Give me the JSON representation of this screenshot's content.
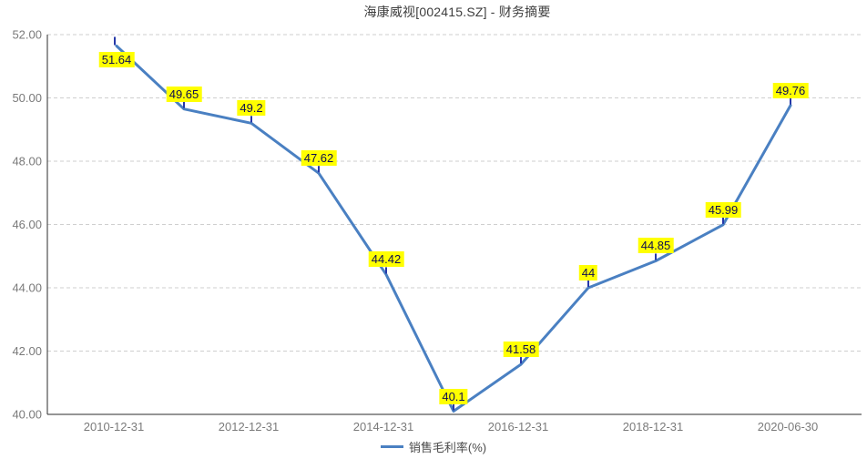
{
  "title": "海康威视[002415.SZ] - 财务摘要",
  "legend": {
    "series_label": "销售毛利率(%)"
  },
  "colors": {
    "series_line": "#4a80c2",
    "connector": "#2638a8",
    "point_label_bg": "#ffff00",
    "point_label_text": "#0d0d52",
    "grid_line": "#cfcfcf",
    "axis_line": "#2b2b2b",
    "axis_text": "#7a7a7a"
  },
  "chart_data": {
    "type": "line",
    "title": "海康威视[002415.SZ] - 财务摘要",
    "series": [
      {
        "name": "销售毛利率(%)",
        "values": [
          51.64,
          49.65,
          49.2,
          47.62,
          44.42,
          40.1,
          41.58,
          44,
          44.85,
          45.99,
          49.76
        ]
      }
    ],
    "point_labels": [
      "51.64",
      "49.65",
      "49.2",
      "47.62",
      "44.42",
      "40.1",
      "41.58",
      "44",
      "44.85",
      "45.99",
      "49.76"
    ],
    "point_label_pos": [
      "below",
      "above",
      "above",
      "above",
      "above",
      "above",
      "above",
      "above",
      "above",
      "above",
      "above"
    ],
    "x_tick_labels": [
      {
        "index": 0,
        "label": "2010-12-31"
      },
      {
        "index": 2,
        "label": "2012-12-31"
      },
      {
        "index": 4,
        "label": "2014-12-31"
      },
      {
        "index": 6,
        "label": "2016-12-31"
      },
      {
        "index": 8,
        "label": "2018-12-31"
      },
      {
        "index": 10,
        "label": "2020-06-30"
      }
    ],
    "y_ticks": [
      {
        "label": "52.00",
        "value": 52
      },
      {
        "label": "50.00",
        "value": 50
      },
      {
        "label": "48.00",
        "value": 48
      },
      {
        "label": "46.00",
        "value": 46
      },
      {
        "label": "44.00",
        "value": 44
      },
      {
        "label": "42.00",
        "value": 42
      },
      {
        "label": "40.00",
        "value": 40
      }
    ],
    "ylim": [
      40,
      52
    ],
    "y_step": 2,
    "grid": "horizontal-dashed",
    "legend_position": "bottom-center"
  }
}
